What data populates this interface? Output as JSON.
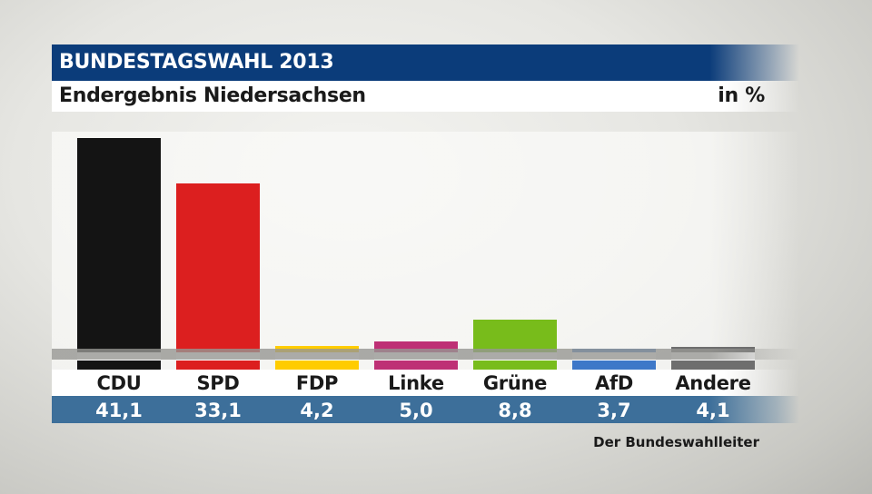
{
  "header": {
    "title": "BUNDESTAGSWAHL 2013",
    "subtitle": "Endergebnis Niedersachsen",
    "unit": "in %"
  },
  "source": "Der Bundeswahlleiter",
  "chart_data": {
    "type": "bar",
    "title": "BUNDESTAGSWAHL 2013",
    "subtitle": "Endergebnis Niedersachsen",
    "ylabel": "in %",
    "ylim": [
      0,
      41.1
    ],
    "grid": false,
    "categories": [
      "CDU",
      "SPD",
      "FDP",
      "Linke",
      "Grüne",
      "AfD",
      "Andere"
    ],
    "values": [
      41.1,
      33.1,
      4.2,
      5.0,
      8.8,
      3.7,
      4.1
    ],
    "value_labels": [
      "41,1",
      "33,1",
      "4,2",
      "5,0",
      "8,8",
      "3,7",
      "4,1"
    ],
    "colors": [
      "#141414",
      "#dc1f1f",
      "#ffcc00",
      "#be3075",
      "#78bc1b",
      "#3e78c8",
      "#6e6e6e"
    ]
  }
}
